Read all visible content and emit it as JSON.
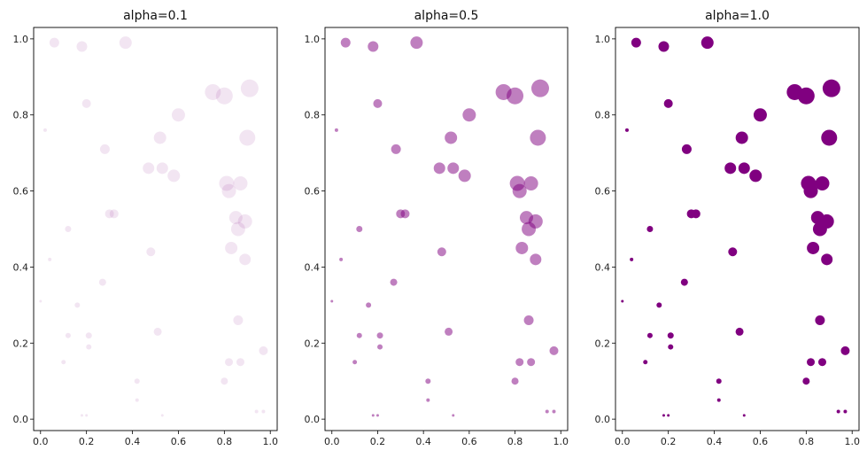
{
  "chart_data": [
    {
      "type": "scatter",
      "title": "alpha=0.1",
      "alpha": 0.1,
      "color": "#800080",
      "xlim": [
        -0.03,
        1.03
      ],
      "ylim": [
        -0.03,
        1.03
      ],
      "xticks": [
        "0.0",
        "0.2",
        "0.4",
        "0.6",
        "0.8",
        "1.0"
      ],
      "yticks": [
        "0.0",
        "0.2",
        "0.4",
        "0.6",
        "0.8",
        "1.0"
      ],
      "x": [
        0.06,
        0.18,
        0.37,
        0.02,
        0.2,
        0.28,
        0.6,
        0.52,
        0.75,
        0.8,
        0.91,
        0.9,
        0.47,
        0.53,
        0.58,
        0.81,
        0.82,
        0.87,
        0.3,
        0.32,
        0.12,
        0.85,
        0.89,
        0.86,
        0.83,
        0.04,
        0.48,
        0.89,
        0.27,
        0.0,
        0.16,
        0.86,
        0.12,
        0.21,
        0.51,
        0.21,
        0.97,
        0.1,
        0.82,
        0.87,
        0.42,
        0.8,
        0.42,
        0.94,
        0.97,
        0.18,
        0.2,
        0.53
      ],
      "y": [
        0.99,
        0.98,
        0.99,
        0.76,
        0.83,
        0.71,
        0.8,
        0.74,
        0.86,
        0.85,
        0.87,
        0.74,
        0.66,
        0.66,
        0.64,
        0.62,
        0.6,
        0.62,
        0.54,
        0.54,
        0.5,
        0.53,
        0.52,
        0.5,
        0.45,
        0.42,
        0.44,
        0.42,
        0.36,
        0.31,
        0.3,
        0.26,
        0.22,
        0.22,
        0.23,
        0.19,
        0.18,
        0.15,
        0.15,
        0.15,
        0.1,
        0.1,
        0.05,
        0.02,
        0.02,
        0.01,
        0.01,
        0.01
      ],
      "sizes": [
        5.5,
        6,
        7,
        2,
        5,
        5.5,
        7.5,
        7,
        9,
        9.5,
        10,
        9,
        6.5,
        6.5,
        7,
        8.5,
        8,
        8,
        5,
        5,
        3.5,
        7.5,
        8,
        8,
        7,
        2,
        5,
        6.5,
        4,
        1.5,
        3,
        5.5,
        3,
        3.5,
        4.5,
        3,
        5,
        2.5,
        4.5,
        4.5,
        3,
        4,
        2,
        2,
        2,
        1.5,
        1.5,
        1.5
      ]
    },
    {
      "type": "scatter",
      "title": "alpha=0.5",
      "alpha": 0.5,
      "color": "#800080",
      "xlim": [
        -0.03,
        1.03
      ],
      "ylim": [
        -0.03,
        1.03
      ],
      "xticks": [
        "0.0",
        "0.2",
        "0.4",
        "0.6",
        "0.8",
        "1.0"
      ],
      "yticks": [
        "0.0",
        "0.2",
        "0.4",
        "0.6",
        "0.8",
        "1.0"
      ],
      "x": [
        0.06,
        0.18,
        0.37,
        0.02,
        0.2,
        0.28,
        0.6,
        0.52,
        0.75,
        0.8,
        0.91,
        0.9,
        0.47,
        0.53,
        0.58,
        0.81,
        0.82,
        0.87,
        0.3,
        0.32,
        0.12,
        0.85,
        0.89,
        0.86,
        0.83,
        0.04,
        0.48,
        0.89,
        0.27,
        0.0,
        0.16,
        0.86,
        0.12,
        0.21,
        0.51,
        0.21,
        0.97,
        0.1,
        0.82,
        0.87,
        0.42,
        0.8,
        0.42,
        0.94,
        0.97,
        0.18,
        0.2,
        0.53
      ],
      "y": [
        0.99,
        0.98,
        0.99,
        0.76,
        0.83,
        0.71,
        0.8,
        0.74,
        0.86,
        0.85,
        0.87,
        0.74,
        0.66,
        0.66,
        0.64,
        0.62,
        0.6,
        0.62,
        0.54,
        0.54,
        0.5,
        0.53,
        0.52,
        0.5,
        0.45,
        0.42,
        0.44,
        0.42,
        0.36,
        0.31,
        0.3,
        0.26,
        0.22,
        0.22,
        0.23,
        0.19,
        0.18,
        0.15,
        0.15,
        0.15,
        0.1,
        0.1,
        0.05,
        0.02,
        0.02,
        0.01,
        0.01,
        0.01
      ],
      "sizes": [
        5.5,
        6,
        7,
        2,
        5,
        5.5,
        7.5,
        7,
        9,
        9.5,
        10,
        9,
        6.5,
        6.5,
        7,
        8.5,
        8,
        8,
        5,
        5,
        3.5,
        7.5,
        8,
        8,
        7,
        2,
        5,
        6.5,
        4,
        1.5,
        3,
        5.5,
        3,
        3.5,
        4.5,
        3,
        5,
        2.5,
        4.5,
        4.5,
        3,
        4,
        2,
        2,
        2,
        1.5,
        1.5,
        1.5
      ]
    },
    {
      "type": "scatter",
      "title": "alpha=1.0",
      "alpha": 1.0,
      "color": "#800080",
      "xlim": [
        -0.03,
        1.03
      ],
      "ylim": [
        -0.03,
        1.03
      ],
      "xticks": [
        "0.0",
        "0.2",
        "0.4",
        "0.6",
        "0.8",
        "1.0"
      ],
      "yticks": [
        "0.0",
        "0.2",
        "0.4",
        "0.6",
        "0.8",
        "1.0"
      ],
      "x": [
        0.06,
        0.18,
        0.37,
        0.02,
        0.2,
        0.28,
        0.6,
        0.52,
        0.75,
        0.8,
        0.91,
        0.9,
        0.47,
        0.53,
        0.58,
        0.81,
        0.82,
        0.87,
        0.3,
        0.32,
        0.12,
        0.85,
        0.89,
        0.86,
        0.83,
        0.04,
        0.48,
        0.89,
        0.27,
        0.0,
        0.16,
        0.86,
        0.12,
        0.21,
        0.51,
        0.21,
        0.97,
        0.1,
        0.82,
        0.87,
        0.42,
        0.8,
        0.42,
        0.94,
        0.97,
        0.18,
        0.2,
        0.53
      ],
      "y": [
        0.99,
        0.98,
        0.99,
        0.76,
        0.83,
        0.71,
        0.8,
        0.74,
        0.86,
        0.85,
        0.87,
        0.74,
        0.66,
        0.66,
        0.64,
        0.62,
        0.6,
        0.62,
        0.54,
        0.54,
        0.5,
        0.53,
        0.52,
        0.5,
        0.45,
        0.42,
        0.44,
        0.42,
        0.36,
        0.31,
        0.3,
        0.26,
        0.22,
        0.22,
        0.23,
        0.19,
        0.18,
        0.15,
        0.15,
        0.15,
        0.1,
        0.1,
        0.05,
        0.02,
        0.02,
        0.01,
        0.01,
        0.01
      ],
      "sizes": [
        5.5,
        6,
        7,
        2,
        5,
        5.5,
        7.5,
        7,
        9,
        9.5,
        10,
        9,
        6.5,
        6.5,
        7,
        8.5,
        8,
        8,
        5,
        5,
        3.5,
        7.5,
        8,
        8,
        7,
        2,
        5,
        6.5,
        4,
        1.5,
        3,
        5.5,
        3,
        3.5,
        4.5,
        3,
        5,
        2.5,
        4.5,
        4.5,
        3,
        4,
        2,
        2,
        2,
        1.5,
        1.5,
        1.5
      ]
    }
  ]
}
